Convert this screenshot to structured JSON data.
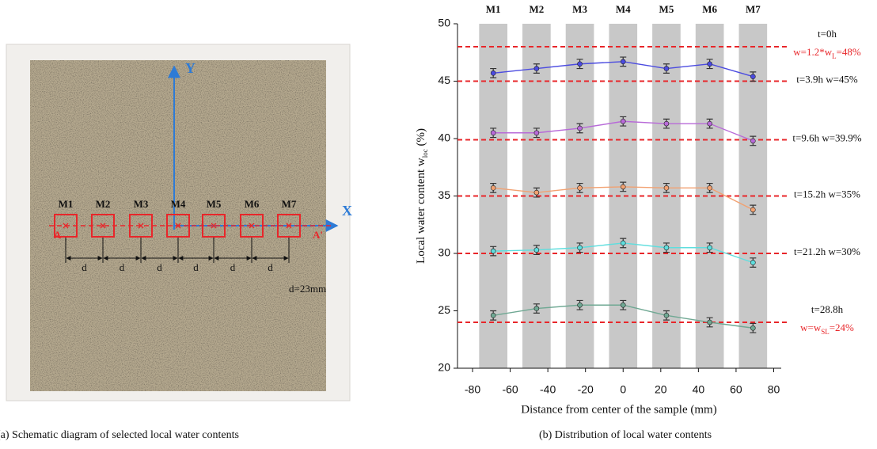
{
  "panel_a": {
    "caption": "(a) Schematic diagram of selected local water contents",
    "x_axis": "X",
    "y_axis": "Y",
    "section_start": "A",
    "section_end": "A'",
    "points": [
      "M1",
      "M2",
      "M3",
      "M4",
      "M5",
      "M6",
      "M7"
    ],
    "spacing": [
      "d",
      "d",
      "d",
      "d",
      "d",
      "d"
    ],
    "spacing_note": "d=23mm"
  },
  "chart_data": {
    "type": "line",
    "caption": "(b) Distribution  of local water contents",
    "x_label": "Distance from center of the sample (mm)",
    "y_label": [
      "Local water content w",
      "loc",
      " (%)"
    ],
    "x": [
      -69,
      -46,
      -23,
      0,
      23,
      46,
      69
    ],
    "xlim": [
      -88,
      84
    ],
    "xticks": [
      -80,
      -60,
      -40,
      -20,
      0,
      20,
      40,
      60,
      80
    ],
    "ylim": [
      20,
      50
    ],
    "yticks": [
      20,
      25,
      30,
      35,
      40,
      45,
      50
    ],
    "bands": {
      "labels": [
        "M1",
        "M2",
        "M3",
        "M4",
        "M5",
        "M6",
        "M7"
      ],
      "x": [
        -69,
        -46,
        -23,
        0,
        23,
        46,
        69
      ],
      "width": 15,
      "color": "#c8c8c8"
    },
    "series": [
      {
        "color": "#4b4be0",
        "values": [
          45.7,
          46.1,
          46.5,
          46.7,
          46.1,
          46.5,
          45.4
        ],
        "errors": [
          0.4,
          0.4,
          0.4,
          0.4,
          0.4,
          0.4,
          0.4
        ]
      },
      {
        "color": "#b86ad8",
        "values": [
          40.5,
          40.5,
          40.9,
          41.5,
          41.3,
          41.3,
          39.8
        ],
        "errors": [
          0.4,
          0.4,
          0.4,
          0.4,
          0.4,
          0.4,
          0.4
        ]
      },
      {
        "color": "#f2a171",
        "values": [
          35.7,
          35.3,
          35.7,
          35.8,
          35.7,
          35.7,
          33.8
        ],
        "errors": [
          0.4,
          0.4,
          0.4,
          0.4,
          0.4,
          0.4,
          0.4
        ]
      },
      {
        "color": "#5fdede",
        "values": [
          30.2,
          30.3,
          30.5,
          30.9,
          30.5,
          30.5,
          29.2
        ],
        "errors": [
          0.4,
          0.4,
          0.4,
          0.4,
          0.4,
          0.4,
          0.4
        ]
      },
      {
        "color": "#6fa893",
        "values": [
          24.6,
          25.2,
          25.5,
          25.5,
          24.6,
          24.0,
          23.5
        ],
        "errors": [
          0.4,
          0.4,
          0.4,
          0.4,
          0.4,
          0.4,
          0.4
        ]
      }
    ],
    "reference_lines": {
      "color": "#e8262a",
      "lines": [
        {
          "value": 48,
          "labels": [
            {
              "parts": [
                "t=0h"
              ],
              "color": "#111111"
            },
            {
              "parts": [
                "w=1.2*w",
                "L",
                "=48%"
              ],
              "color": "#e8262a"
            }
          ]
        },
        {
          "value": 45,
          "labels": [
            {
              "parts": [
                "t=3.9h w=45%"
              ],
              "color": "#111111"
            }
          ]
        },
        {
          "value": 39.9,
          "labels": [
            {
              "parts": [
                "t=9.6h w=39.9%"
              ],
              "color": "#111111"
            }
          ]
        },
        {
          "value": 35,
          "labels": [
            {
              "parts": [
                "t=15.2h w=35%"
              ],
              "color": "#111111"
            }
          ]
        },
        {
          "value": 30,
          "labels": [
            {
              "parts": [
                "t=21.2h w=30%"
              ],
              "color": "#111111"
            }
          ]
        },
        {
          "value": 24,
          "labels": [
            {
              "parts": [
                "t=28.8h"
              ],
              "color": "#111111"
            },
            {
              "parts": [
                "w=w",
                "SL",
                "=24%"
              ],
              "color": "#e8262a"
            }
          ]
        }
      ]
    }
  }
}
